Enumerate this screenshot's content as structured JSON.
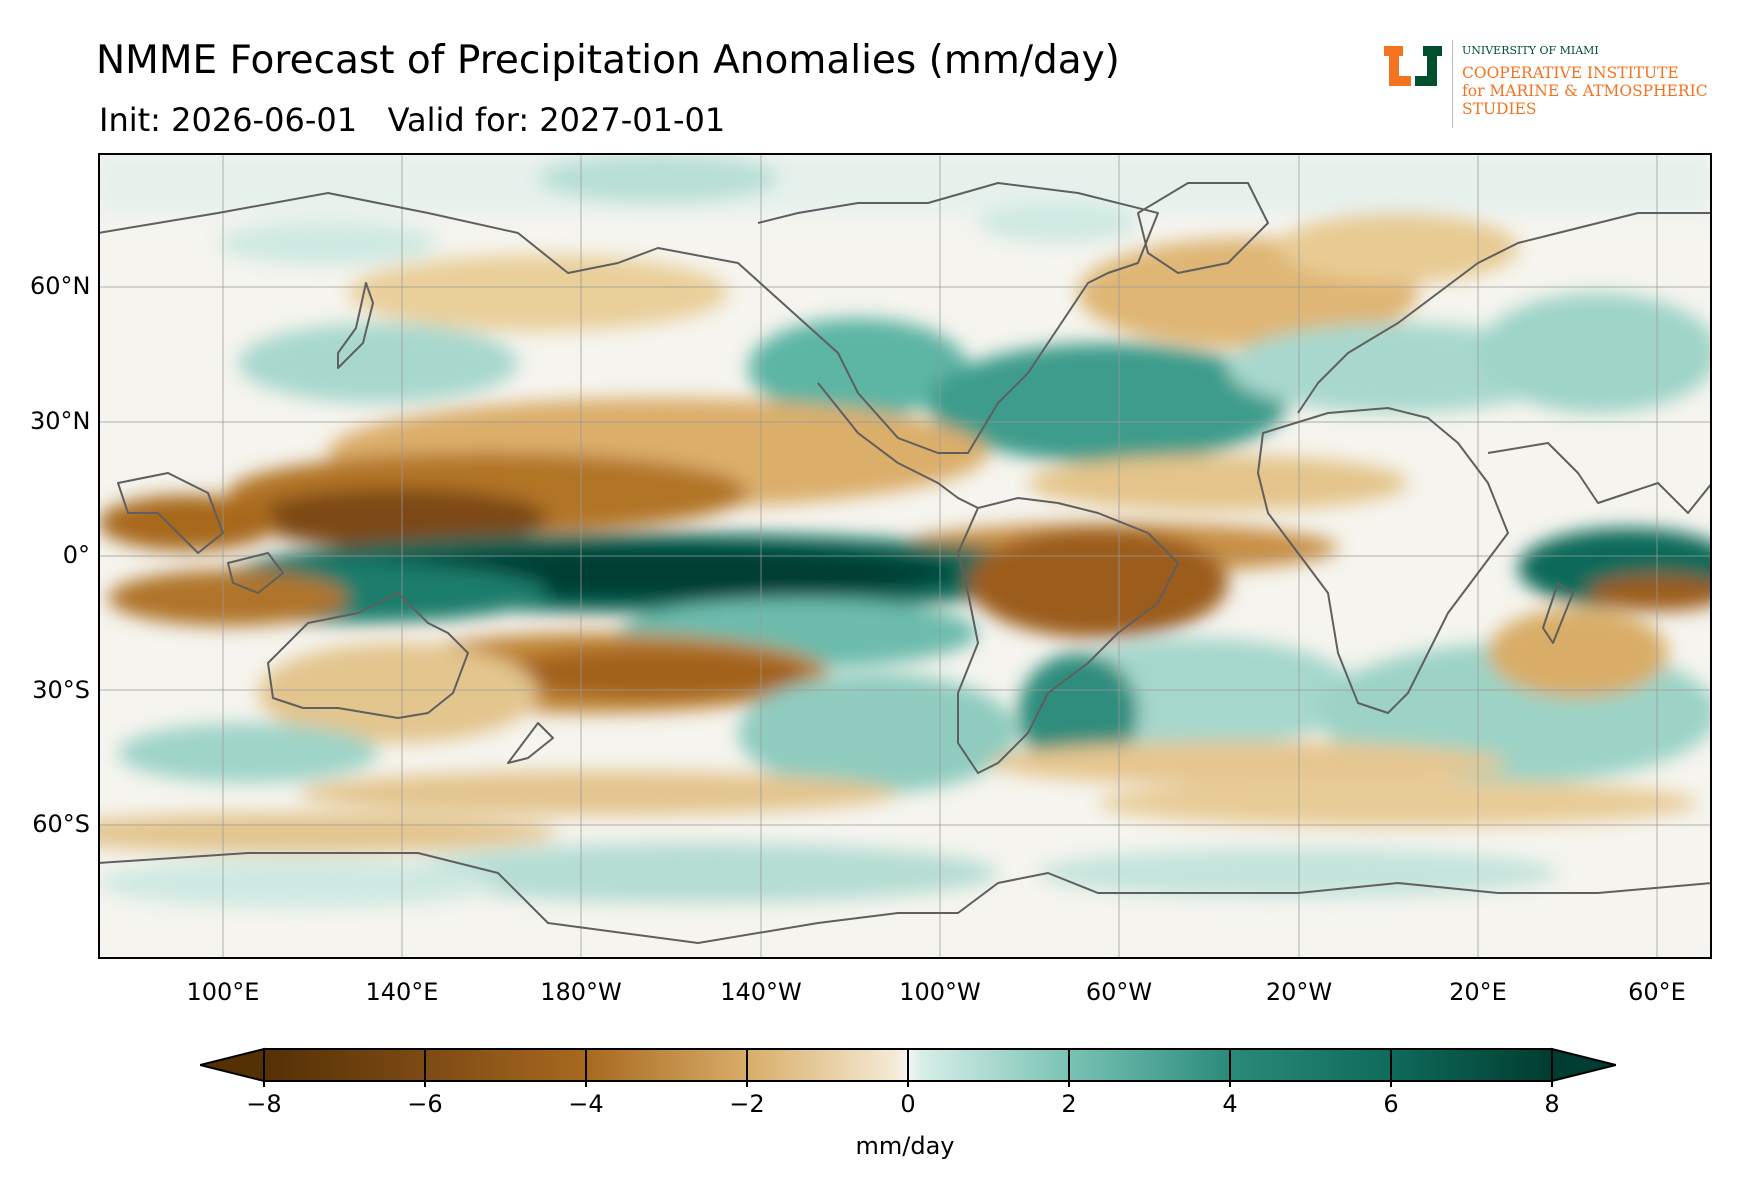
{
  "title": "NMME Forecast of Precipitation Anomalies (mm/day)",
  "subtitle": "Init: 2026-06-01   Valid for: 2027-01-01",
  "logo": {
    "university": "UNIVERSITY OF MIAMI",
    "line1": "COOPERATIVE INSTITUTE",
    "line2": "for MARINE & ATMOSPHERIC",
    "line3": "STUDIES",
    "green": "#005030",
    "orange": "#f47321"
  },
  "map": {
    "projection": "plate-carree",
    "grid": true,
    "lat_labels": [
      "60°N",
      "30°N",
      "0°",
      "30°S",
      "60°S"
    ],
    "lon_labels": [
      "100°E",
      "140°E",
      "180°W",
      "140°W",
      "100°W",
      "60°W",
      "20°W",
      "20°E",
      "60°E"
    ]
  },
  "colorbar": {
    "colormap": "BrBG",
    "label": "mm/day",
    "ticks": [
      "−8",
      "−6",
      "−4",
      "−2",
      "0",
      "2",
      "4",
      "6",
      "8"
    ],
    "range": [
      -8,
      8
    ],
    "extend": "both",
    "dry_color": "#543005",
    "wet_color": "#003c30"
  }
}
